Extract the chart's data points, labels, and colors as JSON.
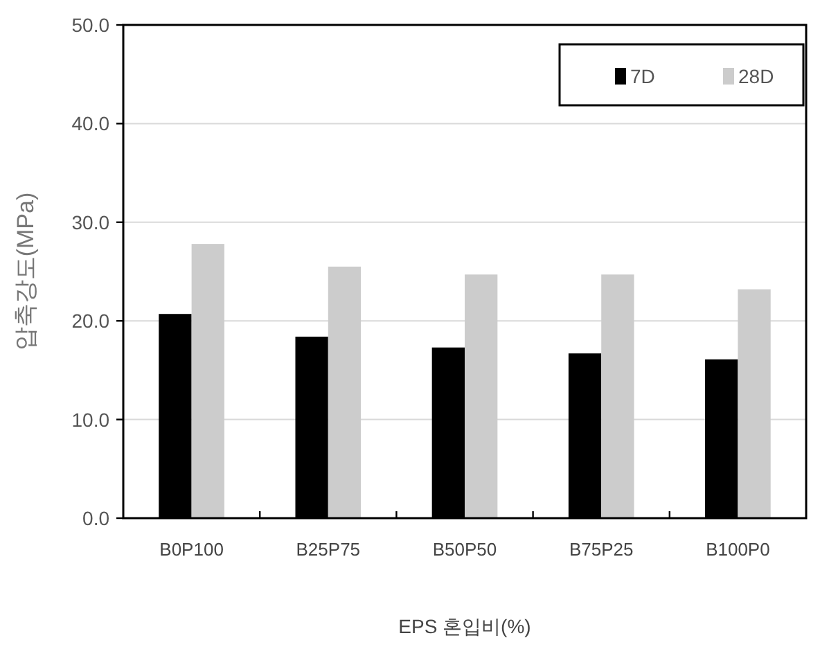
{
  "chart_data": {
    "type": "bar",
    "xlabel": "EPS 혼입비(%)",
    "ylabel": "압축강도(MPa)",
    "categories": [
      "B0P100",
      "B25P75",
      "B50P50",
      "B75P25",
      "B100P0"
    ],
    "series": [
      {
        "name": "7D",
        "color": "#000000",
        "values": [
          20.7,
          18.4,
          17.3,
          16.7,
          16.1
        ]
      },
      {
        "name": "28D",
        "color": "#cccccc",
        "values": [
          27.8,
          25.5,
          24.7,
          24.7,
          23.2
        ]
      }
    ],
    "ylim": [
      0,
      50
    ],
    "yticks": [
      {
        "value": 0,
        "label": "0.0"
      },
      {
        "value": 10,
        "label": "10.0"
      },
      {
        "value": 20,
        "label": "20.0"
      },
      {
        "value": 30,
        "label": "30.0"
      },
      {
        "value": 40,
        "label": "40.0"
      },
      {
        "value": 50,
        "label": "50.0"
      }
    ],
    "grid": "y",
    "legend": "top right"
  }
}
